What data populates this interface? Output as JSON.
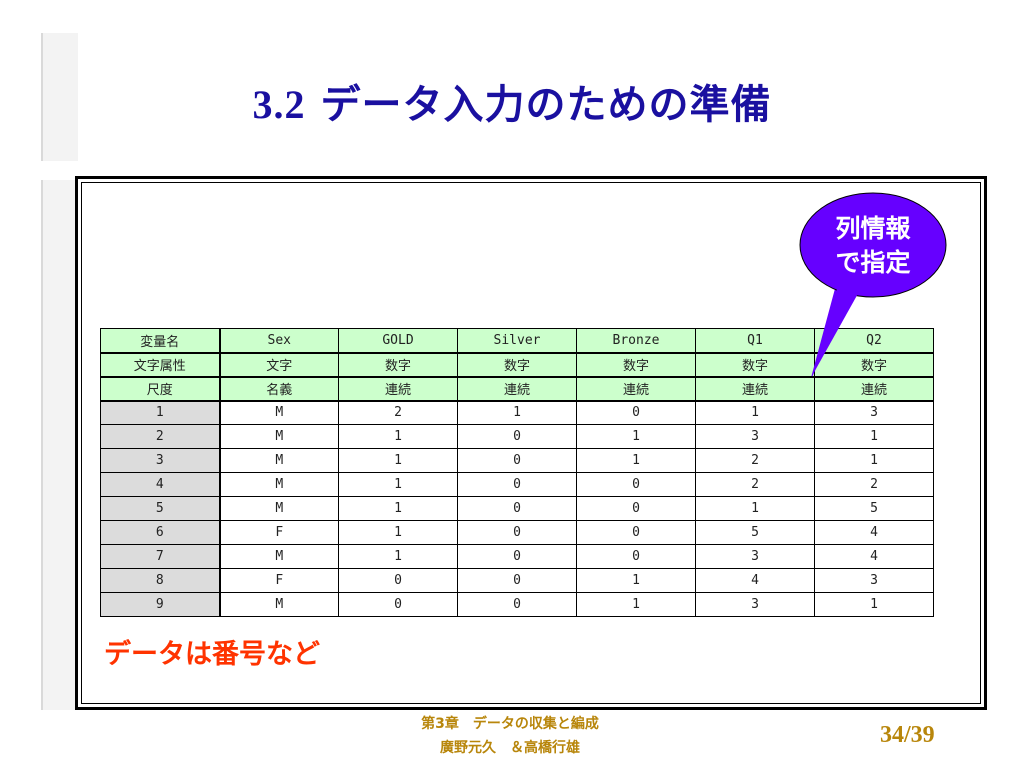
{
  "slide": {
    "title_num": "3.2",
    "title_text": "データ入力のための準備",
    "callout": {
      "line1": "列情報",
      "line2": "で指定",
      "fill": "#6600ff"
    },
    "note": "データは番号など",
    "footer_line1": "第3章　データの収集と編成",
    "footer_line2": "廣野元久　＆高橋行雄",
    "page": "34/39"
  },
  "table": {
    "header_rows": [
      [
        "変量名",
        "Sex",
        "GOLD",
        "Silver",
        "Bronze",
        "Q1",
        "Q2"
      ],
      [
        "文字属性",
        "文字",
        "数字",
        "数字",
        "数字",
        "数字",
        "数字"
      ],
      [
        "尺度",
        "名義",
        "連続",
        "連続",
        "連続",
        "連続",
        "連続"
      ]
    ],
    "rows": [
      [
        "1",
        "M",
        "2",
        "1",
        "0",
        "1",
        "3"
      ],
      [
        "2",
        "M",
        "1",
        "0",
        "1",
        "3",
        "1"
      ],
      [
        "3",
        "M",
        "1",
        "0",
        "1",
        "2",
        "1"
      ],
      [
        "4",
        "M",
        "1",
        "0",
        "0",
        "2",
        "2"
      ],
      [
        "5",
        "M",
        "1",
        "0",
        "0",
        "1",
        "5"
      ],
      [
        "6",
        "F",
        "1",
        "0",
        "0",
        "5",
        "4"
      ],
      [
        "7",
        "M",
        "1",
        "0",
        "0",
        "3",
        "4"
      ],
      [
        "8",
        "F",
        "0",
        "0",
        "1",
        "4",
        "3"
      ],
      [
        "9",
        "M",
        "0",
        "0",
        "1",
        "3",
        "1"
      ]
    ]
  }
}
